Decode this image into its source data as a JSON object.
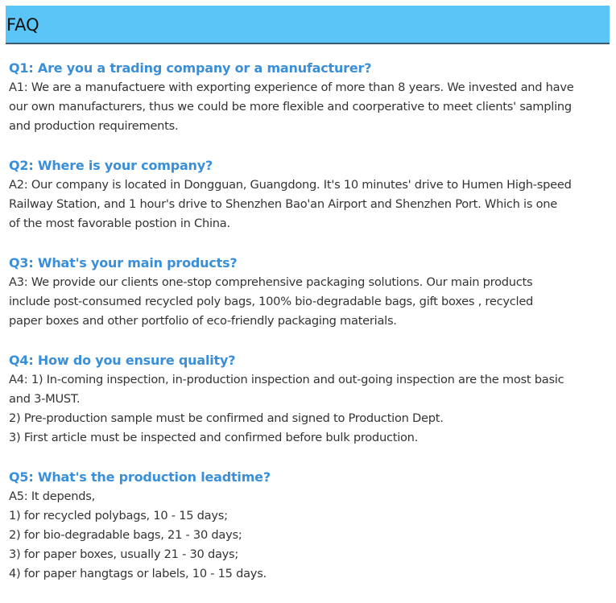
{
  "header": {
    "title": "FAQ",
    "background": "#5bc5f8"
  },
  "faq": [
    {
      "question": "Q1: Are you a trading company or a manufacturer?",
      "answer": [
        "A1: We are a manufactuere with exporting experience of more than 8 years. We invested and have",
        "our own manufacturers, thus we could be more flexible and coorperative to meet clients' sampling",
        "and production requirements."
      ]
    },
    {
      "question": "Q2: Where is your company?",
      "answer": [
        "A2: Our company is located in Dongguan, Guangdong. It's 10 minutes' drive to Humen High-speed",
        "Railway Station, and 1 hour's drive to Shenzhen Bao'an Airport and Shenzhen Port. Which is one",
        "of the most favorable postion in China."
      ]
    },
    {
      "question": "Q3: What's your main products?",
      "answer": [
        "A3: We provide our clients one-stop comprehensive packaging solutions. Our main products",
        "include post-consumed recycled poly bags, 100% bio-degradable bags, gift boxes , recycled",
        "paper boxes and other portfolio of eco-friendly packaging materials."
      ]
    },
    {
      "question": "Q4: How do you ensure quality?",
      "answer": [
        "A4: 1) In-coming inspection, in-production inspection and out-going inspection are the most basic",
        "and 3-MUST.",
        "2) Pre-production sample must be confirmed and signed to Production Dept.",
        "3) First article must be inspected and confirmed before bulk production."
      ]
    },
    {
      "question": "Q5: What's the production leadtime?",
      "answer": [
        "A5: It depends,",
        "1) for recycled polybags, 10 - 15 days;",
        "2) for bio-degradable bags, 21 - 30 days;",
        "3) for paper boxes, usually 21 - 30 days;",
        "4) for paper hangtags or labels, 10 - 15 days."
      ]
    }
  ],
  "colors": {
    "question": "#3a8fd8",
    "answer": "#333333"
  }
}
